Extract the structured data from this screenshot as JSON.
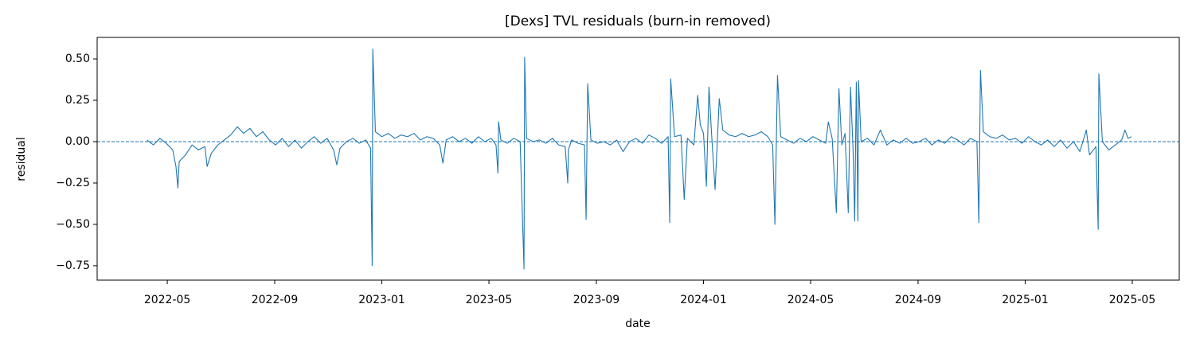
{
  "chart_data": {
    "type": "line",
    "title": "[Dexs] TVL residuals (burn-in removed)",
    "x_label": "date",
    "y_label": "residual",
    "color": "#1f77b4",
    "reference_line": 0,
    "xlim": [
      2022.115,
      2025.479
    ],
    "ylim": [
      -0.837,
      0.63
    ],
    "xticks": [
      {
        "value": 2022.333,
        "label": "2022-05"
      },
      {
        "value": 2022.667,
        "label": "2022-09"
      },
      {
        "value": 2023.0,
        "label": "2023-01"
      },
      {
        "value": 2023.333,
        "label": "2023-05"
      },
      {
        "value": 2023.667,
        "label": "2023-09"
      },
      {
        "value": 2024.0,
        "label": "2024-01"
      },
      {
        "value": 2024.333,
        "label": "2024-05"
      },
      {
        "value": 2024.667,
        "label": "2024-09"
      },
      {
        "value": 2025.0,
        "label": "2025-01"
      },
      {
        "value": 2025.333,
        "label": "2025-05"
      }
    ],
    "yticks": [
      {
        "value": -0.75,
        "label": "−0.75"
      },
      {
        "value": -0.5,
        "label": "−0.50"
      },
      {
        "value": -0.25,
        "label": "−0.25"
      },
      {
        "value": 0,
        "label": "0.00"
      },
      0.25,
      {
        "value": 0.5,
        "label": "0.50"
      }
    ],
    "x": [
      2022.27,
      2022.29,
      2022.31,
      2022.33,
      2022.35,
      2022.36,
      2022.366,
      2022.37,
      2022.39,
      2022.41,
      2022.43,
      2022.45,
      2022.457,
      2022.47,
      2022.49,
      2022.51,
      2022.53,
      2022.551,
      2022.57,
      2022.59,
      2022.61,
      2022.63,
      2022.65,
      2022.67,
      2022.69,
      2022.71,
      2022.73,
      2022.75,
      2022.77,
      2022.79,
      2022.81,
      2022.83,
      2022.85,
      2022.86,
      2022.87,
      2022.89,
      2022.91,
      2022.93,
      2022.95,
      2022.965,
      2022.97,
      2022.972,
      2022.98,
      2023.0,
      2023.02,
      2023.04,
      2023.06,
      2023.08,
      2023.1,
      2023.12,
      2023.14,
      2023.16,
      2023.18,
      2023.19,
      2023.2,
      2023.22,
      2023.24,
      2023.26,
      2023.28,
      2023.3,
      2023.32,
      2023.34,
      2023.355,
      2023.361,
      2023.363,
      2023.37,
      2023.39,
      2023.41,
      2023.43,
      2023.442,
      2023.444,
      2023.45,
      2023.47,
      2023.49,
      2023.51,
      2023.53,
      2023.55,
      2023.57,
      2023.578,
      2023.58,
      2023.59,
      2023.61,
      2023.63,
      2023.635,
      2023.64,
      2023.65,
      2023.67,
      2023.69,
      2023.71,
      2023.73,
      2023.75,
      2023.77,
      2023.79,
      2023.81,
      2023.83,
      2023.85,
      2023.87,
      2023.89,
      2023.895,
      2023.898,
      2023.91,
      2023.93,
      2023.94,
      2023.95,
      2023.97,
      2023.982,
      2023.99,
      2024.0,
      2024.009,
      2024.017,
      2024.025,
      2024.036,
      2024.049,
      2024.06,
      2024.08,
      2024.1,
      2024.12,
      2024.14,
      2024.16,
      2024.18,
      2024.2,
      2024.215,
      2024.222,
      2024.23,
      2024.24,
      2024.26,
      2024.28,
      2024.3,
      2024.32,
      2024.34,
      2024.36,
      2024.38,
      2024.388,
      2024.4,
      2024.413,
      2024.421,
      2024.43,
      2024.44,
      2024.45,
      2024.457,
      2024.465,
      2024.47,
      2024.475,
      2024.48,
      2024.482,
      2024.49,
      2024.51,
      2024.53,
      2024.55,
      2024.57,
      2024.59,
      2024.61,
      2024.63,
      2024.65,
      2024.67,
      2024.69,
      2024.71,
      2024.73,
      2024.75,
      2024.77,
      2024.79,
      2024.81,
      2024.83,
      2024.85,
      2024.856,
      2024.861,
      2024.87,
      2024.89,
      2024.91,
      2024.93,
      2024.95,
      2024.97,
      2024.99,
      2025.01,
      2025.03,
      2025.05,
      2025.07,
      2025.09,
      2025.11,
      2025.13,
      2025.15,
      2025.17,
      2025.19,
      2025.2,
      2025.22,
      2025.227,
      2025.229,
      2025.24,
      2025.26,
      2025.28,
      2025.3,
      2025.31,
      2025.32,
      2025.33
    ],
    "values": [
      0.01,
      -0.02,
      0.02,
      -0.01,
      -0.05,
      -0.15,
      -0.28,
      -0.12,
      -0.08,
      -0.02,
      -0.05,
      -0.03,
      -0.15,
      -0.07,
      -0.02,
      0.01,
      0.04,
      0.09,
      0.05,
      0.08,
      0.03,
      0.06,
      0.01,
      -0.02,
      0.02,
      -0.03,
      0.01,
      -0.04,
      0.0,
      0.03,
      -0.01,
      0.02,
      -0.05,
      -0.14,
      -0.04,
      0.0,
      0.02,
      -0.01,
      0.01,
      -0.04,
      -0.75,
      0.56,
      0.06,
      0.03,
      0.05,
      0.02,
      0.04,
      0.03,
      0.05,
      0.01,
      0.03,
      0.02,
      -0.02,
      -0.13,
      0.01,
      0.03,
      0.0,
      0.02,
      -0.01,
      0.03,
      0.0,
      0.02,
      -0.02,
      -0.19,
      0.12,
      0.01,
      -0.01,
      0.02,
      0.0,
      -0.77,
      0.51,
      0.02,
      0.0,
      0.01,
      -0.01,
      0.02,
      -0.02,
      -0.03,
      -0.25,
      -0.05,
      0.01,
      -0.01,
      -0.02,
      -0.47,
      0.35,
      0.01,
      -0.01,
      0.0,
      -0.02,
      0.01,
      -0.06,
      0.0,
      0.02,
      -0.01,
      0.04,
      0.02,
      -0.01,
      0.03,
      -0.49,
      0.38,
      0.03,
      0.04,
      -0.35,
      0.02,
      -0.02,
      0.28,
      0.1,
      0.05,
      -0.27,
      0.33,
      0.05,
      -0.29,
      0.26,
      0.07,
      0.04,
      0.03,
      0.05,
      0.03,
      0.04,
      0.06,
      0.03,
      -0.02,
      -0.5,
      0.4,
      0.03,
      0.01,
      -0.01,
      0.02,
      0.0,
      0.03,
      0.01,
      -0.01,
      0.12,
      0.02,
      -0.43,
      0.32,
      -0.02,
      0.05,
      -0.43,
      0.33,
      -0.05,
      -0.48,
      0.36,
      -0.48,
      0.37,
      0.0,
      0.02,
      -0.02,
      0.07,
      -0.02,
      0.01,
      -0.01,
      0.02,
      -0.01,
      0.0,
      0.02,
      -0.02,
      0.01,
      -0.01,
      0.03,
      0.01,
      -0.02,
      0.02,
      0.0,
      -0.49,
      0.43,
      0.06,
      0.03,
      0.02,
      0.04,
      0.01,
      0.02,
      -0.01,
      0.03,
      0.0,
      -0.02,
      0.01,
      -0.03,
      0.01,
      -0.04,
      0.0,
      -0.06,
      0.07,
      -0.08,
      -0.03,
      -0.53,
      0.41,
      0.0,
      -0.05,
      -0.02,
      0.01,
      0.07,
      0.02,
      0.03
    ]
  }
}
